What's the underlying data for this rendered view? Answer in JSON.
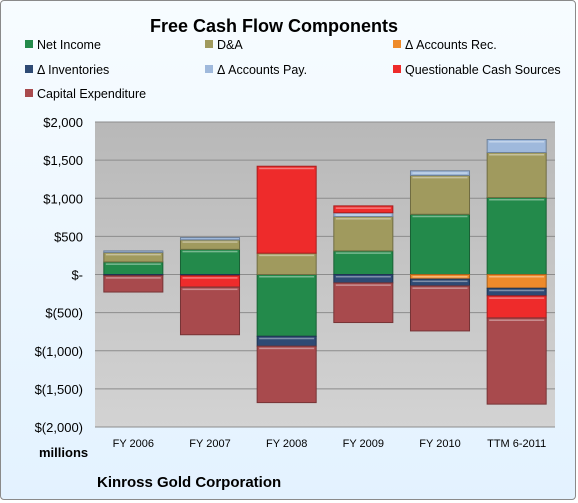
{
  "chart_data": {
    "type": "bar",
    "stacked": true,
    "title": "Free Cash Flow Components",
    "categories": [
      "FY 2006",
      "FY 2007",
      "FY 2008",
      "FY 2009",
      "FY 2010",
      "TTM 6-2011"
    ],
    "ylim": [
      -2000,
      2000
    ],
    "yticks": [
      2000,
      1500,
      1000,
      500,
      0,
      -500,
      -1000,
      -1500,
      -2000
    ],
    "ytick_labels": [
      "$2,000",
      "$1,500",
      "$1,000",
      "$500",
      "$-",
      "$(500)",
      "$(1,000)",
      "$(1,500)",
      "$(2,000)"
    ],
    "units_label": "millions",
    "grid": true,
    "legend_position": "top",
    "series": [
      {
        "name": "Net Income",
        "color": "#238a4b",
        "values": [
          165,
          330,
          -810,
          310,
          790,
          1010
        ]
      },
      {
        "name": "D&A",
        "color": "#a09a5e",
        "values": [
          125,
          125,
          280,
          450,
          510,
          590
        ]
      },
      {
        "name": "Δ Accounts Rec.",
        "color": "#ee8a2a",
        "values": [
          0,
          0,
          0,
          0,
          -60,
          -180
        ]
      },
      {
        "name": "Δ Inventories",
        "color": "#2e4a74",
        "values": [
          -15,
          -15,
          -130,
          -110,
          -90,
          -100
        ]
      },
      {
        "name": "Δ Accounts Pay.",
        "color": "#9fb9dc",
        "values": [
          20,
          30,
          0,
          50,
          60,
          170
        ]
      },
      {
        "name": "Questionable Cash Sources",
        "color": "#ee2b2b",
        "values": [
          0,
          -150,
          1140,
          90,
          0,
          -290
        ]
      },
      {
        "name": "Capital Expenditure",
        "color": "#a84a4d",
        "values": [
          -215,
          -625,
          -740,
          -520,
          -590,
          -1130
        ]
      }
    ]
  },
  "footer": "Kinross Gold Corporation"
}
